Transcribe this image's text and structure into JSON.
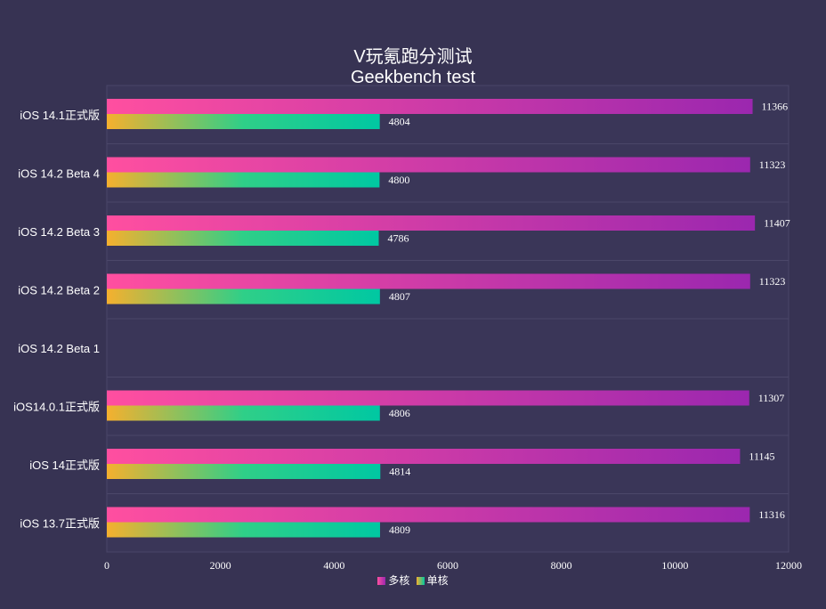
{
  "chart_data": {
    "type": "bar",
    "orientation": "horizontal",
    "title": "V玩氪跑分测试",
    "subtitle": "Geekbench test",
    "categories": [
      "iOS 14.1正式版",
      "iOS 14.2 Beta 4",
      "iOS 14.2 Beta 3",
      "iOS 14.2 Beta 2",
      "iOS 14.2 Beta 1",
      "iOS14.0.1正式版",
      "iOS 14正式版",
      "iOS 13.7正式版"
    ],
    "series": [
      {
        "name": "多核",
        "values": [
          11366,
          11323,
          11407,
          11323,
          null,
          11307,
          11145,
          11316
        ],
        "colors": [
          "#ff4fa0",
          "#9b27af"
        ]
      },
      {
        "name": "单核",
        "values": [
          4804,
          4800,
          4786,
          4807,
          null,
          4806,
          4814,
          4809
        ],
        "colors": [
          "#f5b02e",
          "#00c8a2"
        ]
      }
    ],
    "xlim": [
      0,
      12000
    ],
    "xticks": [
      0,
      2000,
      4000,
      6000,
      8000,
      10000,
      12000
    ],
    "legend_position": "bottom-center",
    "grid": true
  }
}
